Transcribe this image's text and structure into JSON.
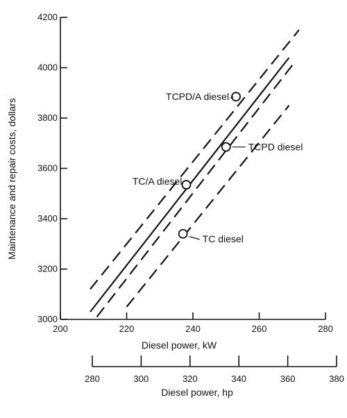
{
  "chart_data": {
    "type": "line",
    "title": "",
    "xlabel": "Diesel power, kW",
    "ylabel": "Maintenance and repair costs, dollars",
    "secondary_xlabel": "Diesel power, hp",
    "xlim": [
      200,
      280
    ],
    "ylim": [
      3000,
      4200
    ],
    "secondary_xlim": [
      280,
      380
    ],
    "x_ticks": [
      "200",
      "220",
      "240",
      "260",
      "280"
    ],
    "y_ticks": [
      "3000",
      "3200",
      "3400",
      "3600",
      "3800",
      "4000",
      "4200"
    ],
    "secondary_x_ticks": [
      "280",
      "300",
      "320",
      "340",
      "360",
      "380"
    ],
    "grid": false,
    "series": [
      {
        "style": "solid",
        "x": [
          209,
          269
        ],
        "y": [
          3030,
          4040
        ]
      },
      {
        "style": "dashed",
        "x": [
          209,
          272
        ],
        "y": [
          3120,
          4150
        ]
      },
      {
        "style": "dashed",
        "x": [
          211,
          270
        ],
        "y": [
          3010,
          4010
        ]
      },
      {
        "style": "dashed",
        "x": [
          220,
          269
        ],
        "y": [
          3050,
          3850
        ]
      }
    ],
    "points": [
      {
        "label": "TCPD/A diesel",
        "x": 253,
        "y": 3885
      },
      {
        "label": "TCPD diesel",
        "x": 250,
        "y": 3685
      },
      {
        "label": "TC/A diesel",
        "x": 238,
        "y": 3535
      },
      {
        "label": "TC diesel",
        "x": 237,
        "y": 3340
      }
    ]
  }
}
